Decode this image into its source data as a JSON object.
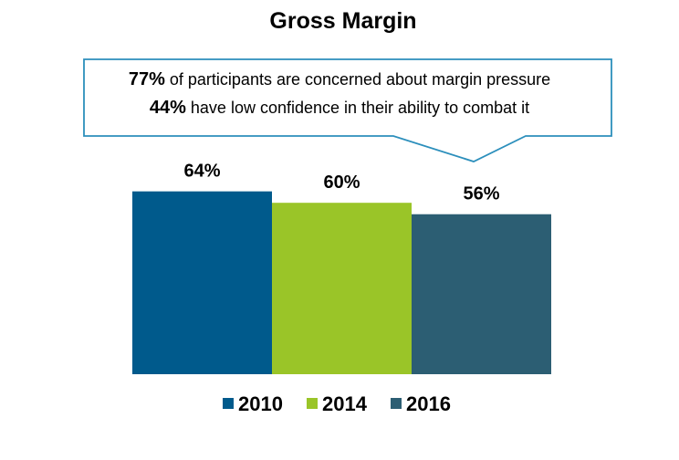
{
  "chart_data": {
    "type": "bar",
    "title": "Gross Margin",
    "categories": [
      "2010",
      "2014",
      "2016"
    ],
    "values": [
      64,
      60,
      56
    ],
    "data_labels": [
      "64%",
      "60%",
      "56%"
    ],
    "unit": "%",
    "xlabel": "",
    "ylabel": "",
    "ylim": [
      0,
      100
    ],
    "grid": false,
    "legend_position": "bottom",
    "legend": [
      "2010",
      "2014",
      "2016"
    ],
    "colors": [
      "#005A8C",
      "#9AC528",
      "#2C5E73"
    ],
    "annotation": {
      "line1_strong": "77%",
      "line1_rest": " of participants are concerned about margin pressure",
      "line2_strong": "44%",
      "line2_rest": " have low confidence in their ability to combat it",
      "border_color": "#2C8FBC"
    }
  }
}
